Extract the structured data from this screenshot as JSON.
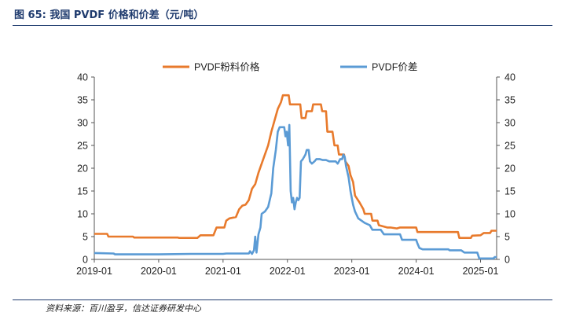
{
  "header": {
    "title": "图 65:  我国 PVDF 价格和价差（元/吨）"
  },
  "footer": {
    "source": "资料来源：百川盈孚，信达证券研发中心"
  },
  "colors": {
    "price": "#e87a2c",
    "spread": "#5b9bd5",
    "frame": "#1f3b6e",
    "axis": "#555555"
  },
  "chart_data": {
    "type": "line",
    "legend_position": "top",
    "grid": false,
    "xlabel": "",
    "ylabel": "",
    "xlim": [
      2019.0,
      2025.25
    ],
    "ylim_left": [
      0,
      40
    ],
    "ylim_right": [
      0,
      40
    ],
    "x_ticks": [
      "2019-01",
      "2020-01",
      "2021-01",
      "2022-01",
      "2023-01",
      "2024-01",
      "2025-01"
    ],
    "y_ticks_left": [
      "0",
      "5",
      "10",
      "15",
      "20",
      "25",
      "30",
      "35",
      "40"
    ],
    "y_ticks_right": [
      "0",
      "5",
      "10",
      "15",
      "20",
      "25",
      "30",
      "35",
      "40"
    ],
    "series": [
      {
        "name": "PVDF粉料价格",
        "axis": "left",
        "points": [
          [
            2019.0,
            5.6
          ],
          [
            2019.2,
            5.6
          ],
          [
            2019.22,
            5.0
          ],
          [
            2019.6,
            5.0
          ],
          [
            2019.62,
            4.8
          ],
          [
            2020.3,
            4.8
          ],
          [
            2020.32,
            4.7
          ],
          [
            2020.6,
            4.7
          ],
          [
            2020.65,
            5.3
          ],
          [
            2020.85,
            5.3
          ],
          [
            2020.9,
            7.0
          ],
          [
            2021.02,
            7.0
          ],
          [
            2021.05,
            8.5
          ],
          [
            2021.1,
            9.0
          ],
          [
            2021.2,
            9.3
          ],
          [
            2021.25,
            11.0
          ],
          [
            2021.3,
            11.8
          ],
          [
            2021.35,
            12.0
          ],
          [
            2021.4,
            13.0
          ],
          [
            2021.45,
            15.5
          ],
          [
            2021.5,
            16.5
          ],
          [
            2021.55,
            19.0
          ],
          [
            2021.6,
            21.0
          ],
          [
            2021.65,
            23.0
          ],
          [
            2021.7,
            25.0
          ],
          [
            2021.75,
            28.0
          ],
          [
            2021.8,
            30.5
          ],
          [
            2021.85,
            33.0
          ],
          [
            2021.9,
            34.5
          ],
          [
            2021.93,
            36.0
          ],
          [
            2022.02,
            36.0
          ],
          [
            2022.04,
            34.0
          ],
          [
            2022.2,
            34.0
          ],
          [
            2022.22,
            31.0
          ],
          [
            2022.28,
            31.0
          ],
          [
            2022.3,
            32.5
          ],
          [
            2022.38,
            32.5
          ],
          [
            2022.4,
            34.0
          ],
          [
            2022.52,
            34.0
          ],
          [
            2022.54,
            32.5
          ],
          [
            2022.6,
            32.5
          ],
          [
            2022.62,
            28.0
          ],
          [
            2022.7,
            28.0
          ],
          [
            2022.73,
            25.0
          ],
          [
            2022.78,
            25.0
          ],
          [
            2022.8,
            23.0
          ],
          [
            2022.88,
            23.0
          ],
          [
            2022.9,
            21.5
          ],
          [
            2022.95,
            20.5
          ],
          [
            2022.98,
            18.5
          ],
          [
            2023.02,
            17.0
          ],
          [
            2023.05,
            14.0
          ],
          [
            2023.12,
            12.5
          ],
          [
            2023.18,
            11.0
          ],
          [
            2023.2,
            10.0
          ],
          [
            2023.3,
            10.0
          ],
          [
            2023.32,
            8.5
          ],
          [
            2023.4,
            8.5
          ],
          [
            2023.42,
            7.5
          ],
          [
            2023.55,
            7.0
          ],
          [
            2023.6,
            7.0
          ],
          [
            2023.7,
            6.8
          ],
          [
            2023.75,
            7.0
          ],
          [
            2024.0,
            7.0
          ],
          [
            2024.02,
            6.0
          ],
          [
            2024.6,
            6.0
          ],
          [
            2024.65,
            6.0
          ],
          [
            2024.67,
            4.7
          ],
          [
            2024.85,
            4.7
          ],
          [
            2024.87,
            5.2
          ],
          [
            2025.0,
            5.3
          ],
          [
            2025.05,
            5.8
          ],
          [
            2025.15,
            5.8
          ],
          [
            2025.17,
            6.3
          ],
          [
            2025.25,
            6.3
          ]
        ]
      },
      {
        "name": "PVDF价差",
        "axis": "right",
        "points": [
          [
            2019.0,
            1.4
          ],
          [
            2019.3,
            1.3
          ],
          [
            2019.32,
            1.1
          ],
          [
            2020.0,
            1.1
          ],
          [
            2020.5,
            1.2
          ],
          [
            2021.0,
            1.2
          ],
          [
            2021.05,
            1.3
          ],
          [
            2021.4,
            1.3
          ],
          [
            2021.42,
            1.8
          ],
          [
            2021.45,
            1.2
          ],
          [
            2021.48,
            2.0
          ],
          [
            2021.5,
            5.0
          ],
          [
            2021.52,
            1.5
          ],
          [
            2021.55,
            5.5
          ],
          [
            2021.58,
            7.0
          ],
          [
            2021.6,
            10.0
          ],
          [
            2021.65,
            10.5
          ],
          [
            2021.7,
            11.5
          ],
          [
            2021.75,
            14.5
          ],
          [
            2021.78,
            20.0
          ],
          [
            2021.82,
            24.0
          ],
          [
            2021.85,
            28.0
          ],
          [
            2021.88,
            29.0
          ],
          [
            2021.95,
            29.0
          ],
          [
            2021.97,
            27.0
          ],
          [
            2021.99,
            28.0
          ],
          [
            2022.01,
            25.0
          ],
          [
            2022.03,
            29.5
          ],
          [
            2022.05,
            15.0
          ],
          [
            2022.07,
            12.5
          ],
          [
            2022.09,
            13.5
          ],
          [
            2022.11,
            11.0
          ],
          [
            2022.13,
            12.5
          ],
          [
            2022.15,
            13.5
          ],
          [
            2022.17,
            13.0
          ],
          [
            2022.19,
            13.5
          ],
          [
            2022.21,
            21.5
          ],
          [
            2022.24,
            22.0
          ],
          [
            2022.28,
            23.0
          ],
          [
            2022.3,
            24.0
          ],
          [
            2022.33,
            24.0
          ],
          [
            2022.35,
            21.5
          ],
          [
            2022.38,
            21.0
          ],
          [
            2022.42,
            21.5
          ],
          [
            2022.45,
            22.0
          ],
          [
            2022.5,
            22.0
          ],
          [
            2022.55,
            21.8
          ],
          [
            2022.6,
            21.8
          ],
          [
            2022.65,
            21.5
          ],
          [
            2022.7,
            21.5
          ],
          [
            2022.75,
            21.5
          ],
          [
            2022.78,
            21.0
          ],
          [
            2022.82,
            22.0
          ],
          [
            2022.85,
            22.0
          ],
          [
            2022.87,
            23.0
          ],
          [
            2022.89,
            22.5
          ],
          [
            2022.91,
            20.5
          ],
          [
            2022.95,
            18.0
          ],
          [
            2022.98,
            15.0
          ],
          [
            2023.02,
            12.0
          ],
          [
            2023.05,
            10.5
          ],
          [
            2023.1,
            9.0
          ],
          [
            2023.2,
            8.0
          ],
          [
            2023.28,
            7.5
          ],
          [
            2023.32,
            6.5
          ],
          [
            2023.45,
            6.5
          ],
          [
            2023.5,
            5.5
          ],
          [
            2023.75,
            5.5
          ],
          [
            2023.78,
            4.3
          ],
          [
            2024.0,
            4.3
          ],
          [
            2024.02,
            3.5
          ],
          [
            2024.05,
            2.5
          ],
          [
            2024.1,
            2.2
          ],
          [
            2024.5,
            2.2
          ],
          [
            2024.52,
            2.0
          ],
          [
            2024.7,
            2.0
          ],
          [
            2024.75,
            1.5
          ],
          [
            2024.95,
            1.5
          ],
          [
            2024.98,
            0.2
          ],
          [
            2025.2,
            0.2
          ],
          [
            2025.22,
            0.5
          ],
          [
            2025.25,
            0.5
          ]
        ]
      }
    ]
  }
}
